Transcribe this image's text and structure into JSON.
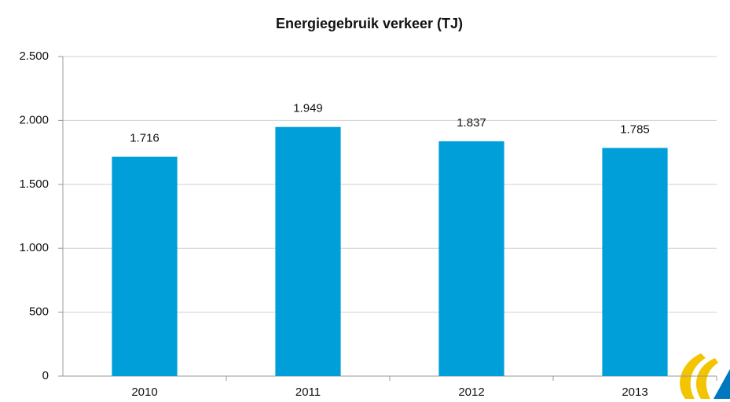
{
  "chart_data": {
    "type": "bar",
    "title": "Energiegebruik verkeer (TJ)",
    "categories": [
      "2010",
      "2011",
      "2012",
      "2013"
    ],
    "values": [
      1716,
      1949,
      1837,
      1785
    ],
    "value_labels": [
      "1.716",
      "1.949",
      "1.837",
      "1.785"
    ],
    "color": "#009fda",
    "ylim": [
      0,
      2500
    ],
    "yticks": [
      0,
      500,
      {
        "value": 1000,
        "label": "1.000"
      },
      {
        "value": 1500,
        "label": "1.500"
      },
      {
        "value": 2000,
        "label": "2.000"
      },
      {
        "value": 2500,
        "label": "2.500"
      }
    ],
    "grid": true
  }
}
